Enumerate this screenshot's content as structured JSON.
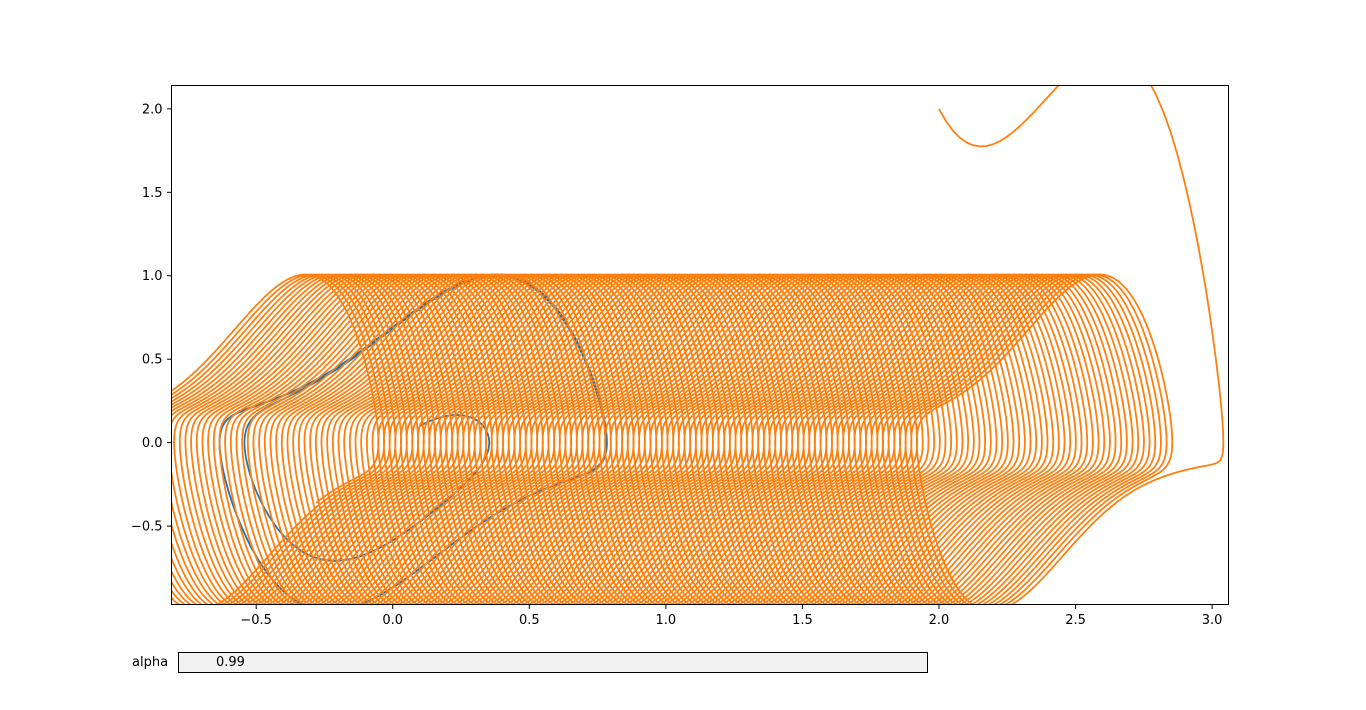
{
  "widgets": {
    "textbox_label": "alpha",
    "textbox_value": "0.99"
  },
  "colors": {
    "series_blue": "#1f77b4",
    "series_orange": "#ff7f0e"
  },
  "chart_data": {
    "type": "line",
    "title": "",
    "xlabel": "",
    "ylabel": "",
    "xlim": [
      -0.81,
      3.06
    ],
    "ylim": [
      -0.97,
      2.14
    ],
    "xticks": [
      -0.5,
      0.0,
      0.5,
      1.0,
      1.5,
      2.0,
      2.5,
      3.0
    ],
    "xtick_labels": [
      "−0.5",
      "0.0",
      "0.5",
      "1.0",
      "1.5",
      "2.0",
      "2.5",
      "3.0"
    ],
    "yticks": [
      -0.5,
      0.0,
      0.5,
      1.0,
      1.5,
      2.0
    ],
    "ytick_labels": [
      "−0.5",
      "0.0",
      "0.5",
      "1.0",
      "1.5",
      "2.0"
    ],
    "grid": false,
    "legend": "none",
    "series": [
      {
        "color": "#1f77b4",
        "start": [
          0.1,
          0.1
        ],
        "shift_per_cycle": 0.0,
        "cycles": 60,
        "limit_cycle": {
          "x_min": -0.63,
          "x_max": 0.78,
          "y_max": 0.82,
          "y_min": -0.82
        }
      },
      {
        "color": "#ff7f0e",
        "start": [
          2.0,
          2.0
        ],
        "shift_per_cycle": -0.0065,
        "cycles": 140,
        "limit_cycle": {
          "x_min": 1.94,
          "x_max": 2.88,
          "y_max": 0.82,
          "y_min": -0.82
        },
        "final_x_min": -0.09
      }
    ]
  }
}
